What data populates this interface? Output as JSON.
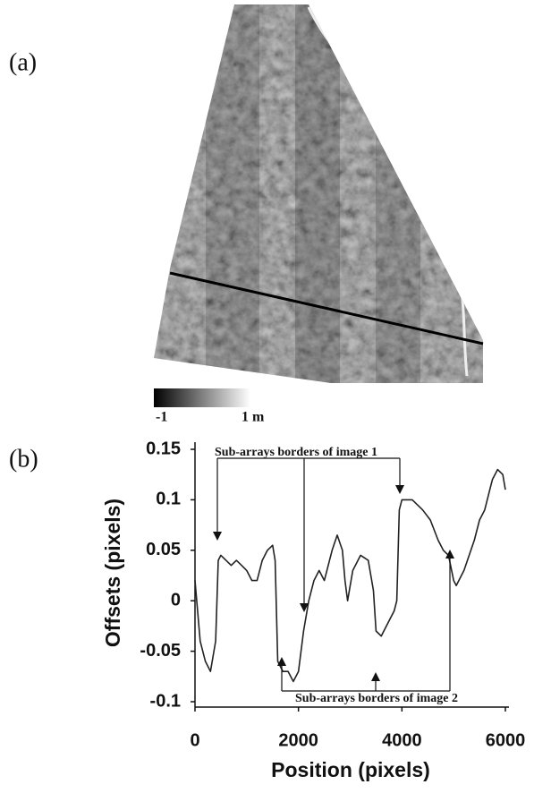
{
  "panel_a": {
    "label": "(a)",
    "colorbar_min_label": "-1",
    "colorbar_max_label": "1 m"
  },
  "chart_data": {
    "type": "line",
    "panel_label": "(b)",
    "x_label": "Position (pixels)",
    "y_label": "Offsets (pixels)",
    "annotations": [
      "Sub-arrays borders of image 1",
      "Sub-arrays borders of image 2"
    ],
    "color": "#222222",
    "x": [
      0,
      100,
      200,
      300,
      400,
      450,
      500,
      600,
      700,
      800,
      900,
      1000,
      1100,
      1200,
      1300,
      1400,
      1500,
      1550,
      1600,
      1700,
      1800,
      1900,
      2000,
      2100,
      2200,
      2300,
      2400,
      2500,
      2600,
      2650,
      2750,
      2850,
      2900,
      2950,
      3050,
      3200,
      3350,
      3450,
      3500,
      3600,
      3750,
      3850,
      3900,
      3950,
      4000,
      4200,
      4400,
      4550,
      4700,
      4800,
      4900,
      5000,
      5050,
      5200,
      5400,
      5500,
      5600,
      5700,
      5750,
      5850,
      5950,
      6000
    ],
    "values": [
      0.02,
      -0.04,
      -0.06,
      -0.07,
      -0.04,
      0.04,
      0.045,
      0.04,
      0.035,
      0.04,
      0.035,
      0.03,
      0.02,
      0.02,
      0.04,
      0.05,
      0.055,
      0.04,
      -0.06,
      -0.07,
      -0.07,
      -0.08,
      -0.07,
      -0.03,
      0.0,
      0.02,
      0.03,
      0.02,
      0.04,
      0.05,
      0.065,
      0.05,
      0.02,
      0.0,
      0.03,
      0.045,
      0.04,
      0.01,
      -0.03,
      -0.035,
      -0.02,
      -0.01,
      0.0,
      0.09,
      0.1,
      0.1,
      0.09,
      0.08,
      0.06,
      0.05,
      0.045,
      0.02,
      0.015,
      0.03,
      0.06,
      0.08,
      0.09,
      0.11,
      0.12,
      0.13,
      0.125,
      0.11
    ],
    "xlim": [
      0,
      6000
    ],
    "ylim": [
      -0.1,
      0.15
    ],
    "xticks": [
      0,
      2000,
      4000,
      6000
    ],
    "yticks": [
      0.15,
      0.1,
      0.05,
      0,
      -0.05,
      -0.1
    ]
  }
}
